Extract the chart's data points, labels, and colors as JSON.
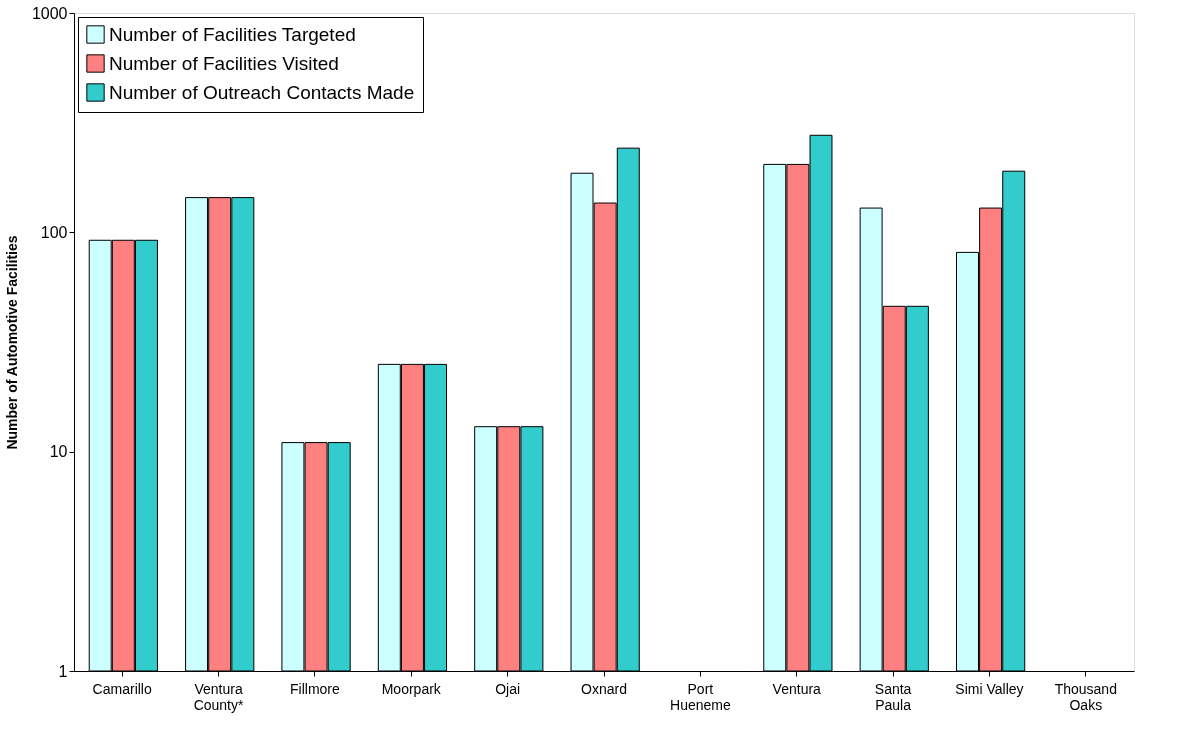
{
  "chart_data": {
    "type": "bar",
    "ylabel": "Number of Automotive Facilities",
    "categories": [
      "Camarillo",
      "Ventura\nCounty*",
      "Fillmore",
      "Moorpark",
      "Ojai",
      "Oxnard",
      "Port\nHueneme",
      "Ventura",
      "Santa\nPaula",
      "Simi Valley",
      "Thousand\nOaks"
    ],
    "series": [
      {
        "name": "Number of Facilities Targeted",
        "color": "#ccffff",
        "values": [
          92,
          144,
          11,
          25,
          13,
          186,
          null,
          204,
          129,
          81,
          null
        ]
      },
      {
        "name": "Number of Facilities Visited",
        "color": "#ff8080",
        "values": [
          92,
          144,
          11,
          25,
          13,
          136,
          null,
          204,
          46,
          129,
          null
        ]
      },
      {
        "name": "Number of Outreach Contacts Made",
        "color": "#33cccc",
        "values": [
          92,
          144,
          11,
          25,
          13,
          242,
          null,
          277,
          46,
          190,
          null
        ]
      }
    ],
    "log": true,
    "ylim": [
      1,
      1000
    ],
    "yticks": [
      1,
      10,
      100,
      1000
    ],
    "grid": false,
    "legend": "top left"
  }
}
